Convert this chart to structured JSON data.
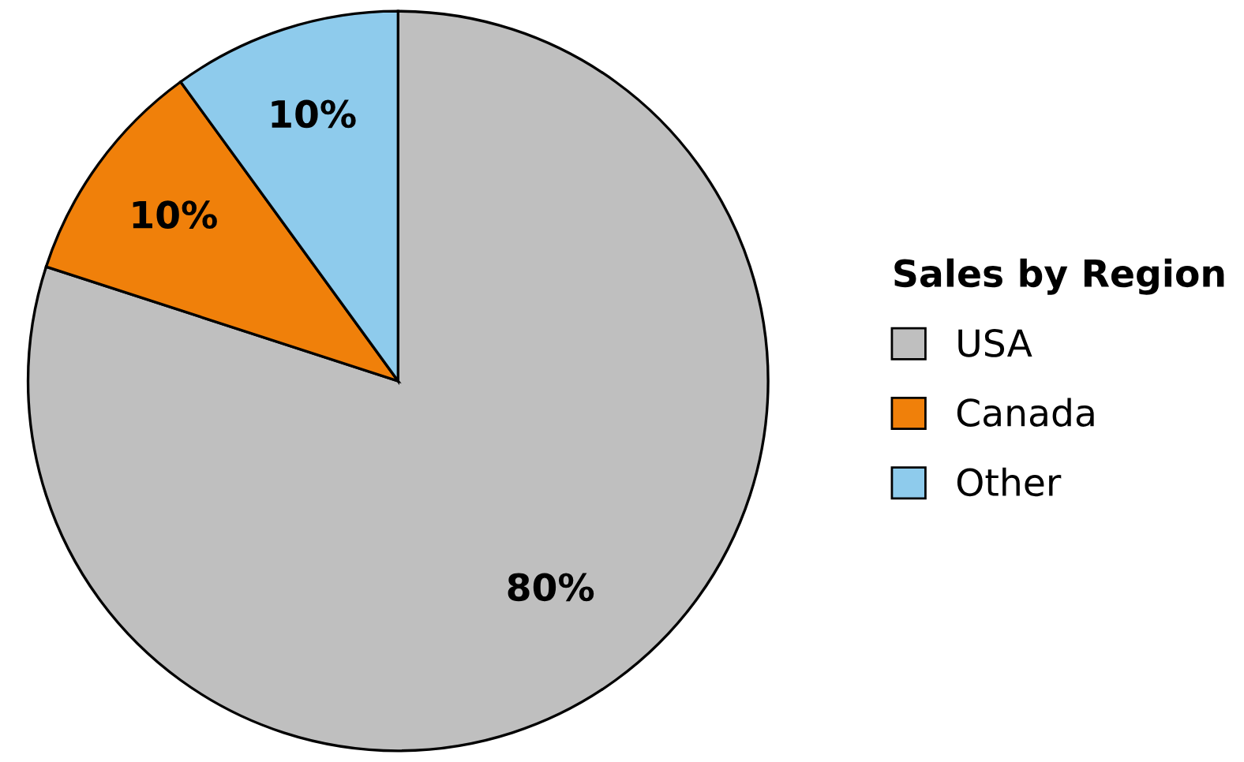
{
  "chart_data": {
    "type": "pie",
    "legend_title": "Sales by Region",
    "categories": [
      "USA",
      "Canada",
      "Other"
    ],
    "values": [
      80,
      10,
      10
    ],
    "colors": [
      "#bfbfbf",
      "#f0800a",
      "#8ecbec"
    ],
    "value_labels": [
      "80%",
      "10%",
      "10%"
    ],
    "legend": "right"
  }
}
